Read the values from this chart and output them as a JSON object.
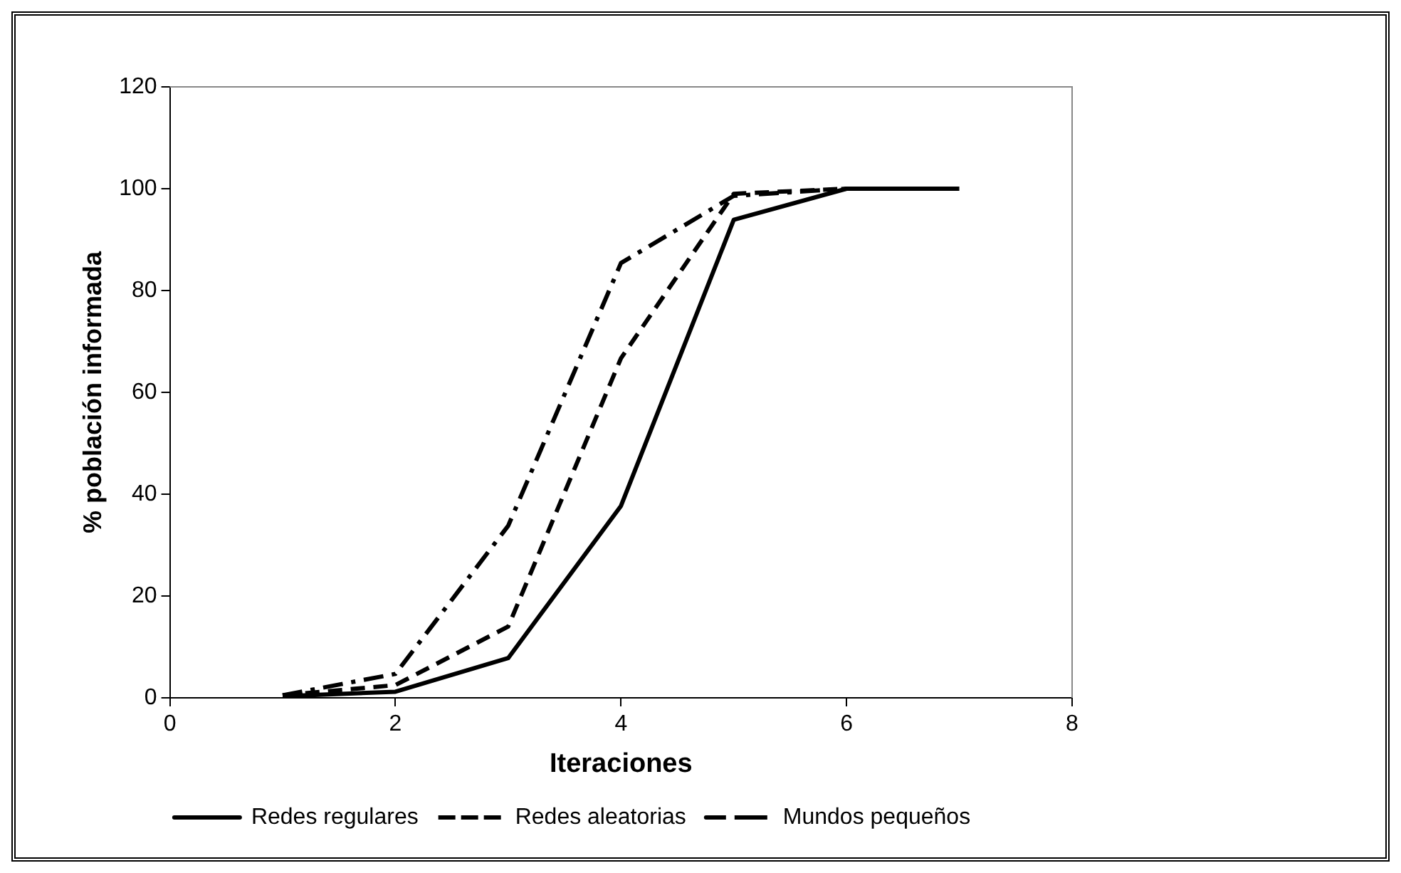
{
  "chart_data": {
    "type": "line",
    "xlabel": "Iteraciones",
    "ylabel": "% población informada",
    "x": [
      1,
      2,
      3,
      4,
      5,
      6,
      7
    ],
    "series": [
      {
        "name": "Redes regulares",
        "color": "#000000",
        "line_style": "solid",
        "values": [
          0.3,
          1.2,
          7.8,
          37.7,
          93.9,
          100,
          100
        ]
      },
      {
        "name": "Redes aleatorias",
        "color": "#000000",
        "line_style": "dashed",
        "values": [
          0.5,
          2.5,
          14,
          66.7,
          99,
          100,
          100
        ]
      },
      {
        "name": "Mundos pequeños",
        "color": "#000000",
        "line_style": "dashdot",
        "values": [
          0.5,
          4.7,
          33.8,
          85.4,
          98.6,
          100,
          100
        ]
      }
    ],
    "xlim": [
      0,
      8
    ],
    "xticks": [
      0,
      2,
      4,
      6,
      8
    ],
    "ylim": [
      0,
      120
    ],
    "yticks": [
      0,
      20,
      40,
      60,
      80,
      100,
      120
    ],
    "grid": false,
    "legend": "bottom",
    "marker": "none"
  }
}
